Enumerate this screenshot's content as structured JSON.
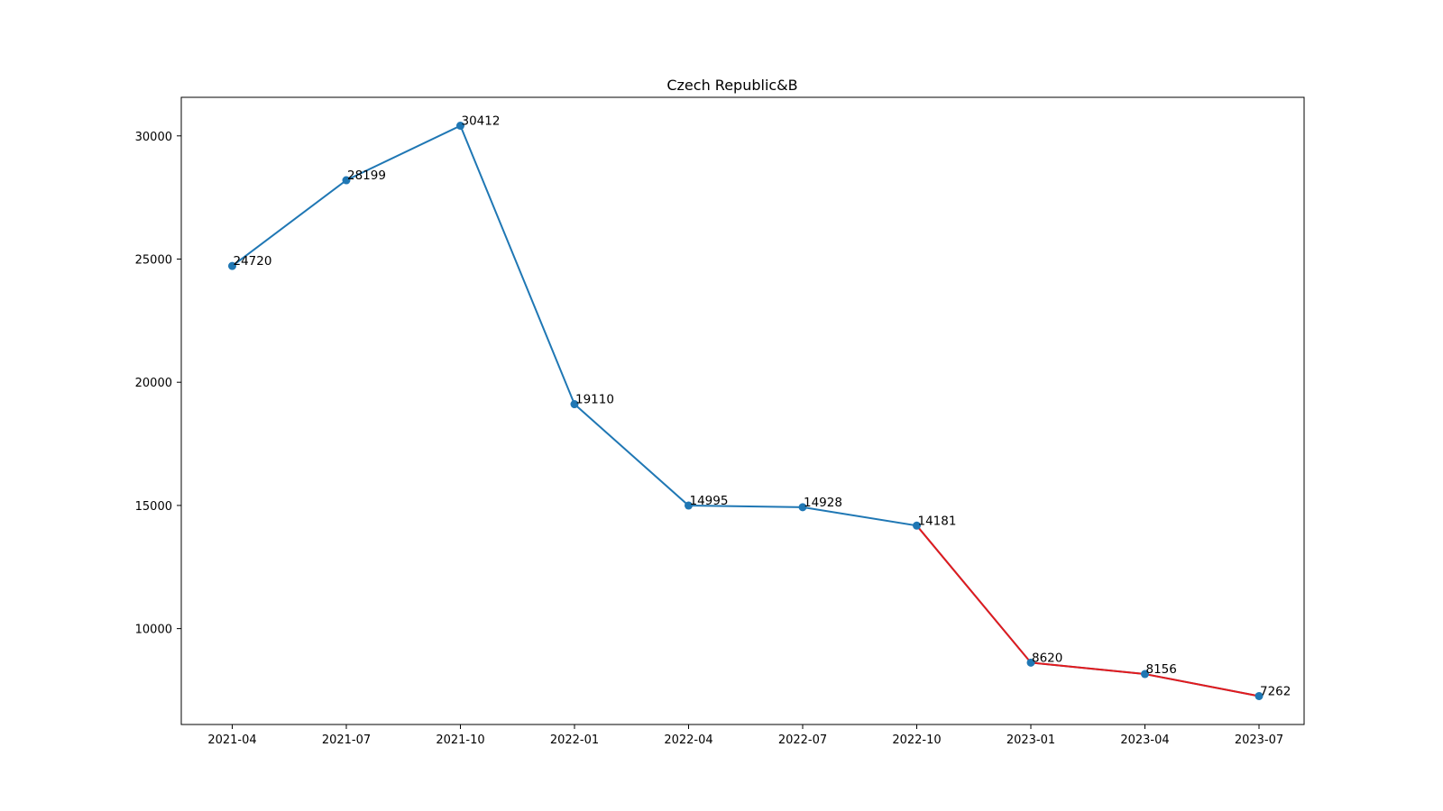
{
  "chart_data": {
    "type": "line",
    "title": "Czech Republic&B",
    "xlabel": "",
    "ylabel": "",
    "x": [
      "2021-04",
      "2021-07",
      "2021-10",
      "2022-01",
      "2022-04",
      "2022-07",
      "2022-10",
      "2023-01",
      "2023-04",
      "2023-07"
    ],
    "values": [
      24720,
      28199,
      30412,
      19110,
      14995,
      14928,
      14181,
      8620,
      8156,
      7262
    ],
    "highlight_from_index": 6,
    "colors": {
      "main": "#1f77b4",
      "highlight": "#e31a1c"
    },
    "yticks": [
      10000,
      15000,
      20000,
      25000,
      30000
    ],
    "ylim": [
      6109,
      31565
    ],
    "grid": false,
    "legend": "none"
  }
}
